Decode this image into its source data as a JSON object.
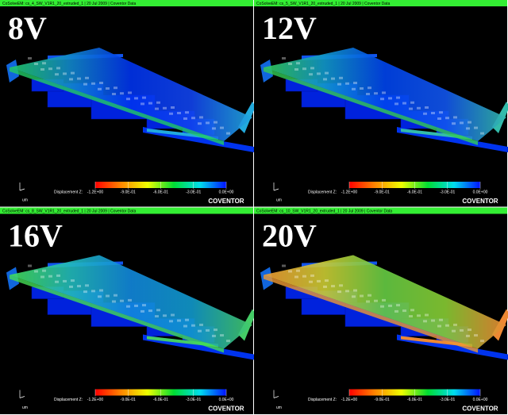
{
  "panels": [
    {
      "header": "CoSolveEM: cs_4_SW_V1R1_20_extruded_1 | 20 Jul 2009 | Coventor Data",
      "voltage": "8V",
      "legend_label": "Displacement Z:",
      "ticks": [
        "-1.2E+00",
        "-9.0E-01",
        "-6.0E-01",
        "-3.0E-01",
        "0.0E+00"
      ],
      "unit": "um",
      "logo": "COVENTOR"
    },
    {
      "header": "CoSolveEM: cs_5_SW_V1R1_20_extruded_1 | 20 Jul 2009 | Coventor Data",
      "voltage": "12V",
      "legend_label": "Displacement Z:",
      "ticks": [
        "-1.2E+00",
        "-9.0E-01",
        "-6.0E-01",
        "-3.0E-01",
        "0.0E+00"
      ],
      "unit": "um",
      "logo": "COVENTOR"
    },
    {
      "header": "CoSolveEM: cs_8_SW_V1R1_20_extruded_1 | 20 Jul 2009 | Coventor Data",
      "voltage": "16V",
      "legend_label": "Displacement Z:",
      "ticks": [
        "-1.2E+00",
        "-9.0E-01",
        "-6.0E-01",
        "-3.0E-01",
        "0.0E+00"
      ],
      "unit": "um",
      "logo": "COVENTOR"
    },
    {
      "header": "CoSolveEM: cs_10_SW_V1R1_20_extruded_1 | 20 Jul 2009 | Coventor Data",
      "voltage": "20V",
      "legend_label": "Displacement Z:",
      "ticks": [
        "-1.2E+00",
        "-9.0E-01",
        "-6.0E-01",
        "-3.0E-01",
        "0.0E+00"
      ],
      "unit": "um",
      "logo": "COVENTOR"
    }
  ]
}
